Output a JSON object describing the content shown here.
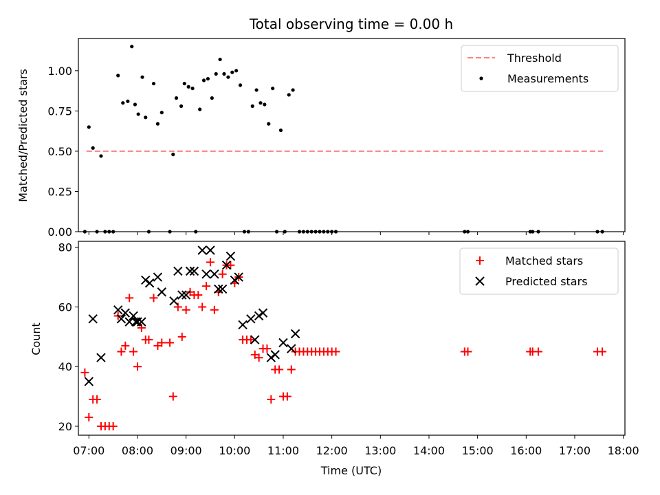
{
  "chart_data": [
    {
      "type": "scatter",
      "title": "Total observing time = 0.00 h",
      "xlabel": "",
      "ylabel": "Matched/Predicted stars",
      "ylim": [
        0,
        1.2
      ],
      "xlim": [
        "06:47",
        "18:02"
      ],
      "yticks": [
        "0.00",
        "0.25",
        "0.50",
        "0.75",
        "1.00"
      ],
      "grid": false,
      "legend_position": "top-right",
      "legend": [
        {
          "label": "Threshold",
          "color": "#ff7f7f",
          "style": "dashed-line"
        },
        {
          "label": "Measurements",
          "color": "#000000",
          "style": "dot"
        }
      ],
      "threshold": {
        "value": 0.5,
        "x_start": "06:57",
        "x_end": "17:35"
      },
      "series": [
        {
          "name": "Measurements",
          "color": "#000000",
          "marker": "dot",
          "points": [
            [
              "06:55",
              0.0
            ],
            [
              "07:00",
              0.65
            ],
            [
              "07:05",
              0.52
            ],
            [
              "07:10",
              0.0
            ],
            [
              "07:15",
              0.47
            ],
            [
              "07:20",
              0.0
            ],
            [
              "07:25",
              0.0
            ],
            [
              "07:30",
              0.0
            ],
            [
              "07:36",
              0.97
            ],
            [
              "07:42",
              0.8
            ],
            [
              "07:48",
              0.81
            ],
            [
              "07:53",
              1.15
            ],
            [
              "07:57",
              0.79
            ],
            [
              "08:01",
              0.73
            ],
            [
              "08:06",
              0.96
            ],
            [
              "08:10",
              0.71
            ],
            [
              "08:14",
              0.0
            ],
            [
              "08:20",
              0.92
            ],
            [
              "08:25",
              0.67
            ],
            [
              "08:30",
              0.74
            ],
            [
              "08:40",
              0.0
            ],
            [
              "08:44",
              0.48
            ],
            [
              "08:48",
              0.83
            ],
            [
              "08:54",
              0.78
            ],
            [
              "08:58",
              0.92
            ],
            [
              "09:03",
              0.9
            ],
            [
              "09:08",
              0.89
            ],
            [
              "09:12",
              0.0
            ],
            [
              "09:17",
              0.76
            ],
            [
              "09:22",
              0.94
            ],
            [
              "09:27",
              0.95
            ],
            [
              "09:32",
              0.83
            ],
            [
              "09:37",
              0.98
            ],
            [
              "09:42",
              1.07
            ],
            [
              "09:47",
              0.98
            ],
            [
              "09:52",
              0.96
            ],
            [
              "09:57",
              0.99
            ],
            [
              "10:02",
              1.0
            ],
            [
              "10:07",
              0.91
            ],
            [
              "10:12",
              0.0
            ],
            [
              "10:17",
              0.0
            ],
            [
              "10:22",
              0.78
            ],
            [
              "10:27",
              0.88
            ],
            [
              "10:32",
              0.8
            ],
            [
              "10:37",
              0.79
            ],
            [
              "10:42",
              0.67
            ],
            [
              "10:47",
              0.89
            ],
            [
              "10:52",
              0.0
            ],
            [
              "10:57",
              0.63
            ],
            [
              "11:02",
              0.0
            ],
            [
              "11:07",
              0.85
            ],
            [
              "11:12",
              0.88
            ],
            [
              "11:20",
              0.0
            ],
            [
              "11:25",
              0.0
            ],
            [
              "11:30",
              0.0
            ],
            [
              "11:35",
              0.0
            ],
            [
              "11:40",
              0.0
            ],
            [
              "11:45",
              0.0
            ],
            [
              "11:50",
              0.0
            ],
            [
              "11:55",
              0.0
            ],
            [
              "12:00",
              0.0
            ],
            [
              "12:05",
              0.0
            ],
            [
              "14:44",
              0.0
            ],
            [
              "14:48",
              0.0
            ],
            [
              "16:05",
              0.0
            ],
            [
              "16:08",
              0.0
            ],
            [
              "16:15",
              0.0
            ],
            [
              "17:28",
              0.0
            ],
            [
              "17:34",
              0.0
            ]
          ]
        }
      ]
    },
    {
      "type": "scatter",
      "title": "",
      "xlabel": "Time (UTC)",
      "ylabel": "Count",
      "ylim": [
        17,
        82
      ],
      "xlim": [
        "06:47",
        "18:02"
      ],
      "xticks": [
        "07:00",
        "08:00",
        "09:00",
        "10:00",
        "11:00",
        "12:00",
        "13:00",
        "14:00",
        "15:00",
        "16:00",
        "17:00",
        "18:00"
      ],
      "yticks": [
        "20",
        "40",
        "60",
        "80"
      ],
      "grid": false,
      "legend_position": "top-right",
      "legend": [
        {
          "label": "Matched stars",
          "color": "#ff0000",
          "style": "plus"
        },
        {
          "label": "Predicted stars",
          "color": "#000000",
          "style": "x"
        }
      ],
      "series": [
        {
          "name": "Matched stars",
          "color": "#ff0000",
          "marker": "plus",
          "points": [
            [
              "06:55",
              38
            ],
            [
              "07:00",
              23
            ],
            [
              "07:05",
              29
            ],
            [
              "07:10",
              29
            ],
            [
              "07:15",
              20
            ],
            [
              "07:20",
              20
            ],
            [
              "07:25",
              20
            ],
            [
              "07:30",
              20
            ],
            [
              "07:36",
              57
            ],
            [
              "07:40",
              45
            ],
            [
              "07:45",
              47
            ],
            [
              "07:50",
              63
            ],
            [
              "07:55",
              45
            ],
            [
              "08:00",
              40
            ],
            [
              "08:05",
              53
            ],
            [
              "08:10",
              49
            ],
            [
              "08:14",
              49
            ],
            [
              "08:20",
              63
            ],
            [
              "08:25",
              47
            ],
            [
              "08:30",
              48
            ],
            [
              "08:40",
              48
            ],
            [
              "08:44",
              30
            ],
            [
              "08:50",
              60
            ],
            [
              "08:55",
              50
            ],
            [
              "09:00",
              59
            ],
            [
              "09:05",
              65
            ],
            [
              "09:10",
              64
            ],
            [
              "09:15",
              64
            ],
            [
              "09:20",
              60
            ],
            [
              "09:25",
              67
            ],
            [
              "09:30",
              75
            ],
            [
              "09:35",
              59
            ],
            [
              "09:40",
              65
            ],
            [
              "09:45",
              71
            ],
            [
              "09:50",
              74
            ],
            [
              "09:55",
              74
            ],
            [
              "10:00",
              68
            ],
            [
              "10:05",
              70
            ],
            [
              "10:10",
              49
            ],
            [
              "10:15",
              49
            ],
            [
              "10:20",
              49
            ],
            [
              "10:25",
              44
            ],
            [
              "10:30",
              43
            ],
            [
              "10:35",
              46
            ],
            [
              "10:40",
              46
            ],
            [
              "10:45",
              29
            ],
            [
              "10:50",
              39
            ],
            [
              "10:55",
              39
            ],
            [
              "11:00",
              30
            ],
            [
              "11:05",
              30
            ],
            [
              "11:10",
              39
            ],
            [
              "11:15",
              45
            ],
            [
              "11:20",
              45
            ],
            [
              "11:25",
              45
            ],
            [
              "11:30",
              45
            ],
            [
              "11:35",
              45
            ],
            [
              "11:40",
              45
            ],
            [
              "11:45",
              45
            ],
            [
              "11:50",
              45
            ],
            [
              "11:55",
              45
            ],
            [
              "12:00",
              45
            ],
            [
              "12:05",
              45
            ],
            [
              "14:44",
              45
            ],
            [
              "14:48",
              45
            ],
            [
              "16:05",
              45
            ],
            [
              "16:08",
              45
            ],
            [
              "16:15",
              45
            ],
            [
              "17:28",
              45
            ],
            [
              "17:34",
              45
            ]
          ]
        },
        {
          "name": "Predicted stars",
          "color": "#000000",
          "marker": "x",
          "points": [
            [
              "07:00",
              35
            ],
            [
              "07:05",
              56
            ],
            [
              "07:15",
              43
            ],
            [
              "07:36",
              59
            ],
            [
              "07:40",
              56
            ],
            [
              "07:45",
              58
            ],
            [
              "07:50",
              55
            ],
            [
              "07:55",
              57
            ],
            [
              "07:58",
              55
            ],
            [
              "08:00",
              55
            ],
            [
              "08:05",
              55
            ],
            [
              "08:10",
              69
            ],
            [
              "08:15",
              68
            ],
            [
              "08:25",
              70
            ],
            [
              "08:30",
              65
            ],
            [
              "08:45",
              62
            ],
            [
              "08:50",
              72
            ],
            [
              "08:55",
              64
            ],
            [
              "09:00",
              64
            ],
            [
              "09:05",
              72
            ],
            [
              "09:10",
              72
            ],
            [
              "09:20",
              79
            ],
            [
              "09:25",
              71
            ],
            [
              "09:30",
              79
            ],
            [
              "09:35",
              71
            ],
            [
              "09:40",
              66
            ],
            [
              "09:45",
              66
            ],
            [
              "09:50",
              74
            ],
            [
              "09:55",
              77
            ],
            [
              "10:00",
              69
            ],
            [
              "10:05",
              70
            ],
            [
              "10:10",
              54
            ],
            [
              "10:20",
              56
            ],
            [
              "10:25",
              49
            ],
            [
              "10:30",
              57
            ],
            [
              "10:35",
              58
            ],
            [
              "10:45",
              43
            ],
            [
              "10:50",
              44
            ],
            [
              "11:00",
              48
            ],
            [
              "11:10",
              46
            ],
            [
              "11:15",
              51
            ]
          ]
        }
      ]
    }
  ]
}
